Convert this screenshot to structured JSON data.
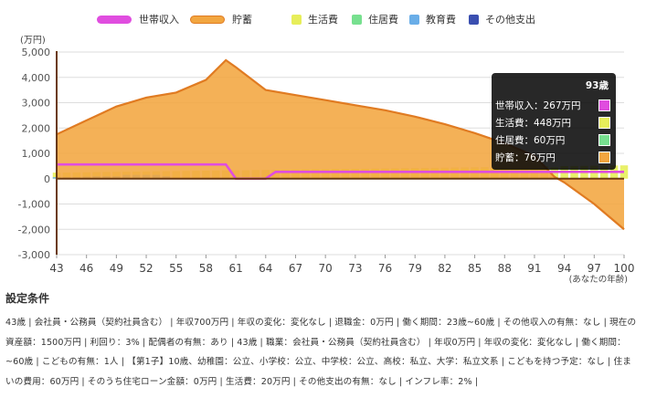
{
  "legend": {
    "items": [
      {
        "label": "世帯収入",
        "color": "#e04ddf",
        "shape": "wide"
      },
      {
        "label": "貯蓄",
        "color": "#f2a640",
        "shape": "wide"
      },
      {
        "label": "生活費",
        "color": "#e7ee5a",
        "shape": "square"
      },
      {
        "label": "住居費",
        "color": "#77e08f",
        "shape": "square"
      },
      {
        "label": "教育費",
        "color": "#6aaee8",
        "shape": "square"
      },
      {
        "label": "その他支出",
        "color": "#3a4fb0",
        "shape": "square"
      }
    ]
  },
  "tooltip": {
    "title": "93歳",
    "rows": [
      {
        "text": "世帯収入：267万円",
        "color": "#e04ddf"
      },
      {
        "text": "生活費：448万円",
        "color": "#e7ee5a"
      },
      {
        "text": "住居費：60万円",
        "color": "#77e08f"
      },
      {
        "text": "貯蓄：76万円",
        "color": "#f2a640"
      }
    ]
  },
  "settings": {
    "heading": "設定条件",
    "text": "43歳 | 会社員・公務員（契約社員含む） | 年収700万円 | 年収の変化：変化なし | 退職金：0万円 | 働く期間：23歳~60歳 | その他収入の有無：なし | 現在の資産額：1500万円 | 利回り：3% | 配偶者の有無：あり | 43歳 | 職業：会社員・公務員（契約社員含む） | 年収0万円 | 年収の変化：変化なし | 働く期間：~60歳 | こどもの有無：1人 | 【第1子】10歳、幼稚園：公立、小学校：公立、中学校：公立、高校：私立、大学：私立文系 | こどもを持つ予定：なし | 住まいの費用：60万円 | そのうち住宅ローン金額：0万円 | 生活費：20万円 | その他支出の有無：なし | インフレ率：2% |"
  },
  "chart_data": {
    "type": "area",
    "ylabel": "(万円)",
    "xlabel": "(あなたの年齢)",
    "ylim": [
      -3000,
      5000
    ],
    "xlim": [
      43,
      100
    ],
    "yticks": [
      "5,000",
      "4,000",
      "3,000",
      "2,000",
      "1,000",
      "0",
      "-1,000",
      "-2,000",
      "-3,000"
    ],
    "xticks": [
      "43",
      "46",
      "49",
      "52",
      "55",
      "58",
      "61",
      "64",
      "67",
      "70",
      "73",
      "76",
      "79",
      "82",
      "85",
      "88",
      "91",
      "94",
      "97",
      "100"
    ],
    "grid": true,
    "legend_position": "top",
    "series": [
      {
        "name": "貯蓄",
        "kind": "area",
        "color": "#f2a640",
        "x": [
          43,
          46,
          49,
          52,
          55,
          58,
          60,
          61,
          64,
          67,
          70,
          73,
          76,
          79,
          82,
          85,
          88,
          91,
          93,
          94,
          97,
          100
        ],
        "values": [
          1750,
          2300,
          2850,
          3200,
          3400,
          3900,
          4680,
          4400,
          3500,
          3300,
          3100,
          2900,
          2700,
          2450,
          2150,
          1800,
          1400,
          900,
          76,
          -150,
          -1000,
          -2000
        ]
      },
      {
        "name": "世帯収入",
        "kind": "line",
        "color": "#e04ddf",
        "x": [
          43,
          60,
          61,
          64,
          65,
          100
        ],
        "values": [
          560,
          560,
          0,
          0,
          267,
          267
        ]
      },
      {
        "name": "生活費",
        "kind": "bar",
        "color": "#e7ee5a",
        "x": [
          43,
          44,
          45,
          46,
          47,
          48,
          49,
          50,
          51,
          52,
          53,
          54,
          55,
          56,
          57,
          58,
          59,
          60,
          61,
          62,
          63,
          64,
          65,
          66,
          67,
          68,
          69,
          70,
          71,
          72,
          73,
          74,
          75,
          76,
          77,
          78,
          79,
          80,
          81,
          82,
          83,
          84,
          85,
          86,
          87,
          88,
          89,
          90,
          91,
          92,
          93,
          94,
          95,
          96,
          97,
          98,
          99,
          100
        ],
        "values": [
          240,
          245,
          250,
          255,
          260,
          265,
          270,
          275,
          280,
          285,
          290,
          295,
          300,
          305,
          310,
          315,
          320,
          325,
          330,
          335,
          340,
          345,
          350,
          355,
          360,
          365,
          370,
          375,
          380,
          385,
          390,
          395,
          400,
          405,
          410,
          415,
          420,
          425,
          430,
          435,
          440,
          445,
          450,
          455,
          460,
          465,
          470,
          475,
          480,
          485,
          448,
          495,
          500,
          505,
          510,
          515,
          520,
          525
        ]
      },
      {
        "name": "教育費",
        "kind": "bar",
        "color": "#6aaee8",
        "x": [
          43,
          44,
          45,
          46,
          47,
          48,
          49,
          50,
          51,
          52,
          53,
          54,
          55
        ],
        "values": [
          60,
          60,
          60,
          80,
          100,
          100,
          100,
          150,
          150,
          150,
          150,
          100,
          0
        ]
      }
    ]
  }
}
